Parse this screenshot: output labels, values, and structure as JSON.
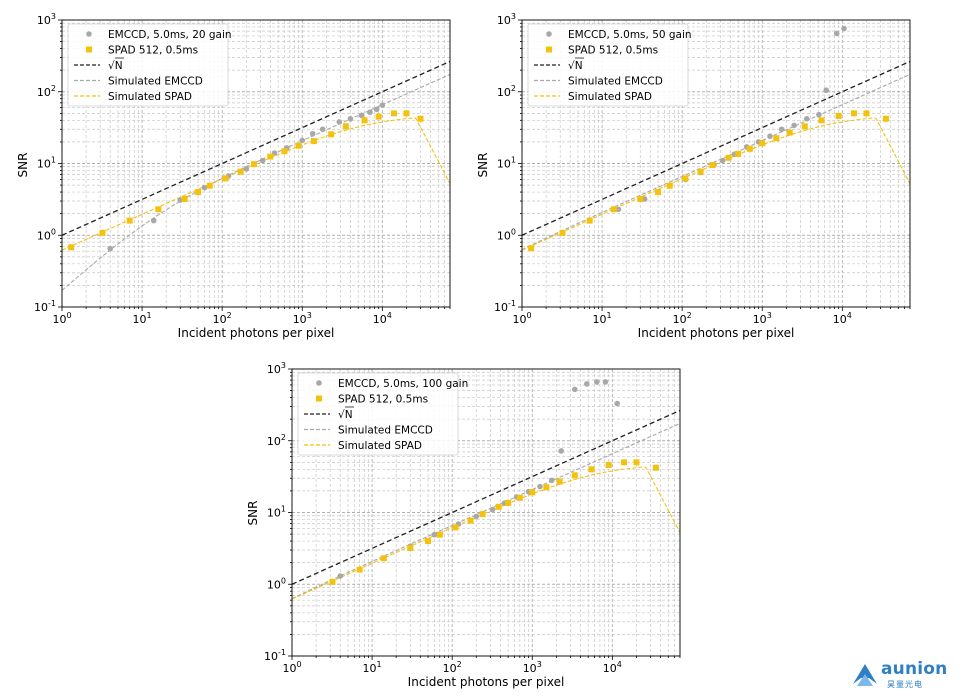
{
  "chart_data": [
    {
      "type": "scatter",
      "xlabel": "Incident photons per pixel",
      "ylabel": "SNR",
      "xscale": "log",
      "yscale": "log",
      "xlim": [
        1,
        70000
      ],
      "ylim": [
        0.1,
        1000
      ],
      "grid": true,
      "legend_position": "top-left",
      "x_ticks": [
        "10^0",
        "10^1",
        "10^2",
        "10^3",
        "10^4"
      ],
      "y_ticks": [
        "10^-1",
        "10^0",
        "10^1",
        "10^2",
        "10^3"
      ],
      "series": [
        {
          "name": "EMCCD, 5.0ms, 20 gain",
          "kind": "points",
          "color": "#a8a8a8",
          "x": [
            4,
            14,
            30,
            60,
            120,
            200,
            320,
            450,
            640,
            1000,
            1350,
            1800,
            2900,
            4000,
            5500,
            7000,
            8500,
            10000
          ],
          "y": [
            0.65,
            1.6,
            3.1,
            4.6,
            6.7,
            8.4,
            11.0,
            14.0,
            16.5,
            21.0,
            26.0,
            30.0,
            38.0,
            42.0,
            47.0,
            52.0,
            57.0,
            65.0
          ]
        },
        {
          "name": "SPAD 512, 0.5ms",
          "kind": "points",
          "color": "#f4c20d",
          "x": [
            1.3,
            3.2,
            7,
            16,
            34,
            50,
            70,
            110,
            170,
            250,
            400,
            600,
            900,
            1400,
            2300,
            3500,
            6000,
            9000,
            14000,
            20000,
            30000
          ],
          "y": [
            0.68,
            1.08,
            1.6,
            2.3,
            3.2,
            4.0,
            4.9,
            6.2,
            7.7,
            9.8,
            12.5,
            14.8,
            17.7,
            20.5,
            25.5,
            33.0,
            40.0,
            45.0,
            50.0,
            50.0,
            42.0
          ]
        },
        {
          "name": "√N",
          "kind": "line",
          "style": "dashed",
          "color": "#222222"
        },
        {
          "name": "Simulated EMCCD",
          "kind": "line",
          "style": "dashed",
          "color": "#a8a8a8"
        },
        {
          "name": "Simulated SPAD",
          "kind": "line",
          "style": "dashed",
          "color": "#f4c20d"
        }
      ]
    },
    {
      "type": "scatter",
      "xlabel": "Incident photons per pixel",
      "ylabel": "SNR",
      "xscale": "log",
      "yscale": "log",
      "xlim": [
        1,
        70000
      ],
      "ylim": [
        0.1,
        1000
      ],
      "grid": true,
      "legend_position": "top-left",
      "x_ticks": [
        "10^0",
        "10^1",
        "10^2",
        "10^3",
        "10^4"
      ],
      "y_ticks": [
        "10^-1",
        "10^0",
        "10^1",
        "10^2",
        "10^3"
      ],
      "series": [
        {
          "name": "EMCCD, 5.0ms, 50 gain",
          "kind": "points",
          "color": "#a8a8a8",
          "x": [
            1.3,
            3.2,
            7,
            16,
            34,
            50,
            70,
            110,
            170,
            250,
            320,
            450,
            640,
            900,
            1250,
            1750,
            2500,
            3600,
            5100,
            6300,
            8500,
            10500
          ],
          "y": [
            0.66,
            1.08,
            1.6,
            2.3,
            3.2,
            4.0,
            4.9,
            6.0,
            7.5,
            9.6,
            11.0,
            13.5,
            17.0,
            20.0,
            24.0,
            30.0,
            34.0,
            42.0,
            48.0,
            105.0,
            650.0,
            760.0
          ]
        },
        {
          "name": "SPAD 512, 0.5ms",
          "kind": "points",
          "color": "#f4c20d",
          "x": [
            1.3,
            3.2,
            7,
            14,
            30,
            50,
            70,
            110,
            170,
            240,
            380,
            500,
            700,
            1000,
            1500,
            2200,
            3400,
            5500,
            9000,
            14000,
            20000,
            35000
          ],
          "y": [
            0.66,
            1.08,
            1.6,
            2.3,
            3.2,
            4.0,
            4.9,
            6.2,
            7.7,
            9.5,
            12.0,
            13.6,
            16.0,
            19.2,
            22.5,
            27.0,
            33.0,
            40.0,
            46.0,
            50.0,
            50.0,
            42.0
          ]
        },
        {
          "name": "√N",
          "kind": "line",
          "style": "dashed",
          "color": "#222222"
        },
        {
          "name": "Simulated EMCCD",
          "kind": "line",
          "style": "dashed",
          "color": "#a8a8a8"
        },
        {
          "name": "Simulated SPAD",
          "kind": "line",
          "style": "dashed",
          "color": "#f4c20d"
        }
      ]
    },
    {
      "type": "scatter",
      "xlabel": "Incident photons per pixel",
      "ylabel": "SNR",
      "xscale": "log",
      "yscale": "log",
      "xlim": [
        1,
        70000
      ],
      "ylim": [
        0.1,
        1000
      ],
      "grid": true,
      "legend_position": "top-left",
      "x_ticks": [
        "10^0",
        "10^1",
        "10^2",
        "10^3",
        "10^4"
      ],
      "y_ticks": [
        "10^-1",
        "10^0",
        "10^1",
        "10^2",
        "10^3"
      ],
      "series": [
        {
          "name": "EMCCD, 5.0ms, 100 gain",
          "kind": "points",
          "color": "#a8a8a8",
          "x": [
            4,
            14,
            30,
            60,
            120,
            200,
            320,
            450,
            640,
            900,
            1250,
            1750,
            2300,
            3400,
            4800,
            6400,
            8200,
            11500
          ],
          "y": [
            1.3,
            2.3,
            3.4,
            4.9,
            6.9,
            8.8,
            11.0,
            13.5,
            16.5,
            19.5,
            23.0,
            28.0,
            72.0,
            520.0,
            620.0,
            660.0,
            660.0,
            330.0
          ]
        },
        {
          "name": "SPAD 512, 0.5ms",
          "kind": "points",
          "color": "#f4c20d",
          "x": [
            3.2,
            7,
            14,
            30,
            50,
            70,
            110,
            170,
            240,
            380,
            500,
            700,
            1000,
            1500,
            2200,
            3400,
            5500,
            9000,
            14000,
            20000,
            35000
          ],
          "y": [
            1.08,
            1.6,
            2.3,
            3.2,
            4.0,
            4.9,
            6.2,
            7.7,
            9.5,
            12.0,
            13.6,
            16.0,
            19.2,
            22.5,
            27.0,
            33.0,
            40.0,
            46.0,
            50.0,
            50.0,
            42.0
          ]
        },
        {
          "name": "√N",
          "kind": "line",
          "style": "dashed",
          "color": "#222222"
        },
        {
          "name": "Simulated EMCCD",
          "kind": "line",
          "style": "dashed",
          "color": "#a8a8a8"
        },
        {
          "name": "Simulated SPAD",
          "kind": "line",
          "style": "dashed",
          "color": "#f4c20d"
        }
      ]
    }
  ],
  "logo": {
    "text": "aunion",
    "subtext": "昊量光电",
    "color": "#2f7fc4"
  }
}
